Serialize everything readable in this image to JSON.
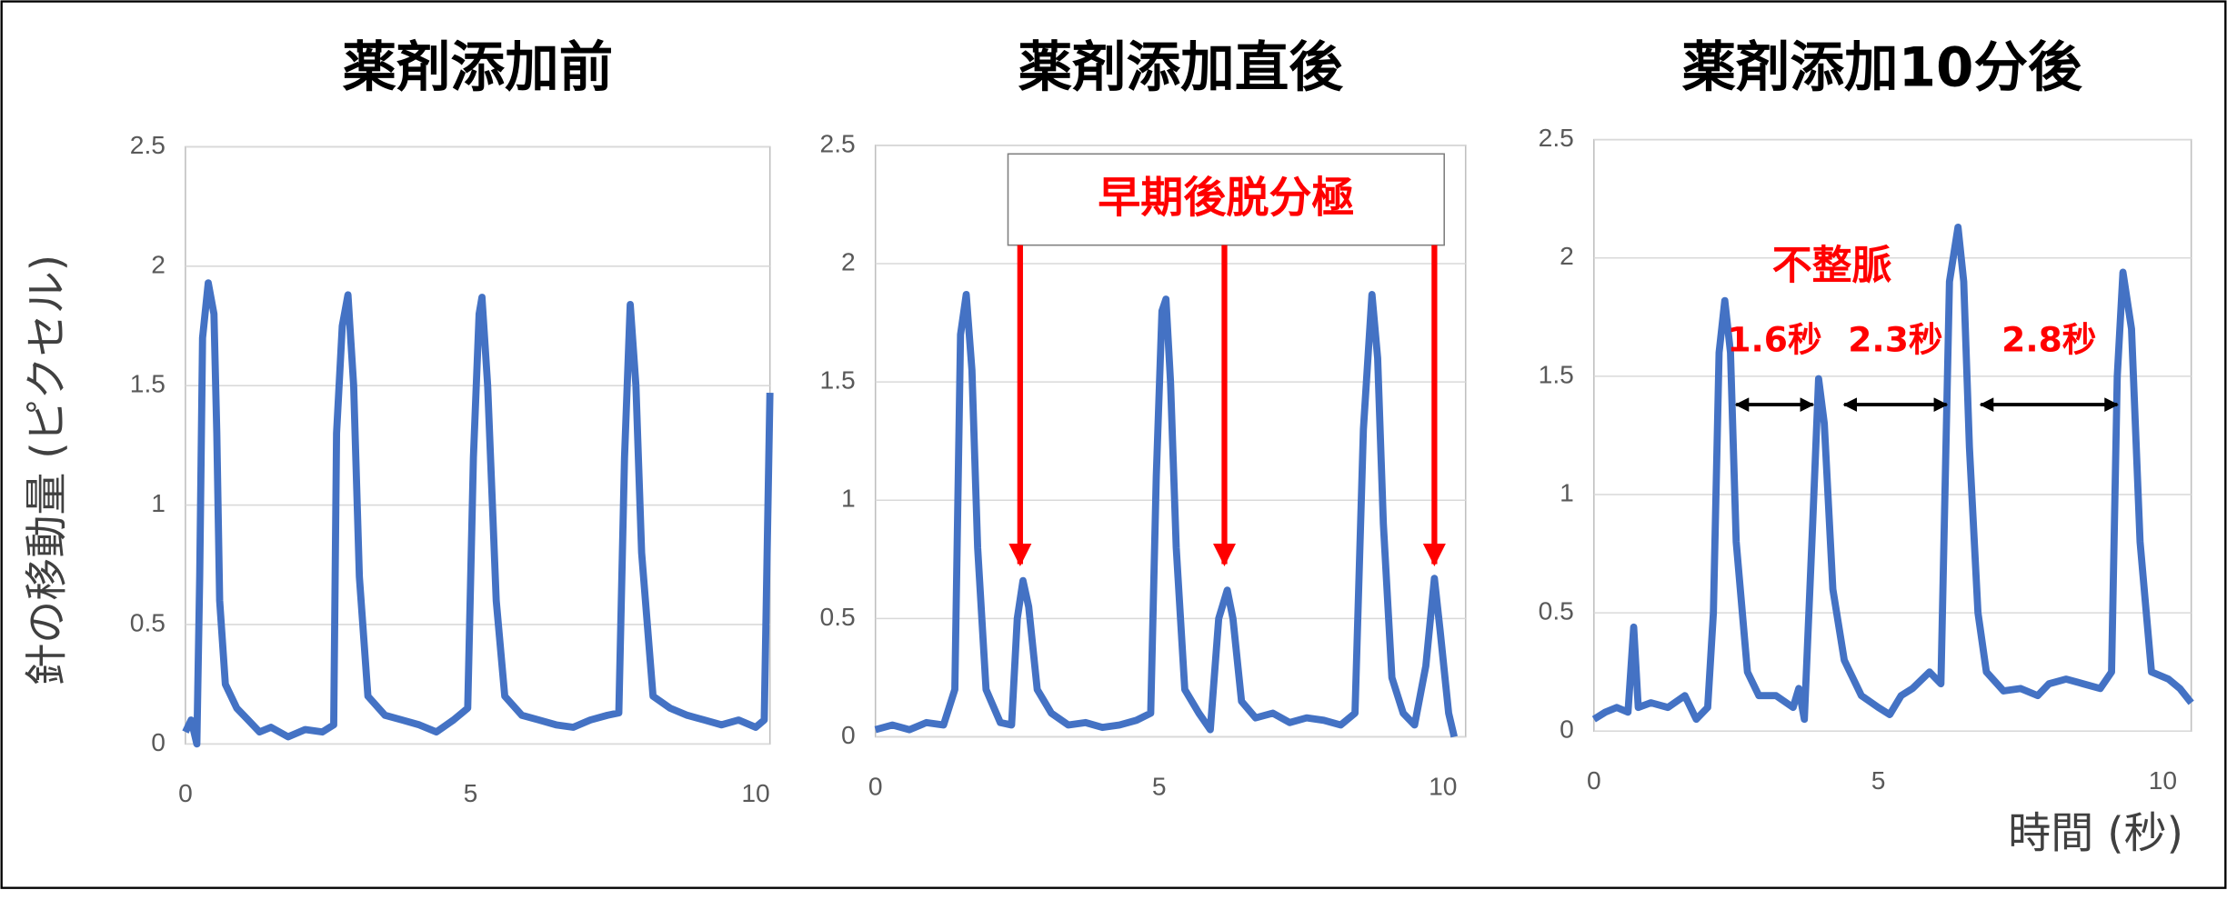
{
  "chart_data": [
    {
      "type": "line",
      "title": "薬剤添加前",
      "ylabel": "針の移動量 (ピクセル)",
      "color": "#4472c4",
      "grid": true,
      "xlim": [
        0,
        10.25
      ],
      "ylim": [
        0,
        2.5
      ],
      "xticks": [
        0,
        5,
        10
      ],
      "yticks": [
        0,
        0.5,
        1,
        1.5,
        2,
        2.5
      ],
      "x": [
        0,
        0.1,
        0.2,
        0.25,
        0.3,
        0.4,
        0.5,
        0.55,
        0.6,
        0.7,
        0.9,
        1.1,
        1.3,
        1.5,
        1.8,
        2.1,
        2.4,
        2.6,
        2.65,
        2.75,
        2.85,
        2.95,
        3.05,
        3.2,
        3.5,
        3.8,
        4.1,
        4.4,
        4.7,
        4.95,
        5.05,
        5.15,
        5.2,
        5.3,
        5.45,
        5.6,
        5.9,
        6.2,
        6.5,
        6.8,
        7.1,
        7.4,
        7.6,
        7.7,
        7.8,
        7.9,
        8.0,
        8.2,
        8.5,
        8.8,
        9.1,
        9.4,
        9.7,
        10.0,
        10.15,
        10.25
      ],
      "values": [
        0.05,
        0.1,
        0.0,
        0.7,
        1.7,
        1.93,
        1.8,
        1.3,
        0.6,
        0.25,
        0.15,
        0.1,
        0.05,
        0.07,
        0.03,
        0.06,
        0.05,
        0.08,
        1.3,
        1.75,
        1.88,
        1.5,
        0.7,
        0.2,
        0.12,
        0.1,
        0.08,
        0.05,
        0.1,
        0.15,
        1.2,
        1.8,
        1.87,
        1.5,
        0.6,
        0.2,
        0.12,
        0.1,
        0.08,
        0.07,
        0.1,
        0.12,
        0.13,
        1.2,
        1.84,
        1.5,
        0.8,
        0.2,
        0.15,
        0.12,
        0.1,
        0.08,
        0.1,
        0.07,
        0.1,
        1.47
      ]
    },
    {
      "type": "line",
      "title": "薬剤添加直後",
      "color": "#4472c4",
      "grid": true,
      "xlim": [
        0,
        10.4
      ],
      "ylim": [
        0,
        2.5
      ],
      "xticks": [
        0,
        5,
        10
      ],
      "yticks": [
        0,
        0.5,
        1,
        1.5,
        2,
        2.5
      ],
      "x": [
        0,
        0.3,
        0.6,
        0.9,
        1.2,
        1.4,
        1.5,
        1.6,
        1.7,
        1.8,
        1.95,
        2.2,
        2.4,
        2.5,
        2.6,
        2.7,
        2.85,
        3.1,
        3.4,
        3.7,
        4.0,
        4.3,
        4.6,
        4.85,
        4.95,
        5.05,
        5.12,
        5.2,
        5.3,
        5.45,
        5.7,
        5.9,
        6.05,
        6.2,
        6.3,
        6.45,
        6.7,
        7.0,
        7.3,
        7.6,
        7.9,
        8.2,
        8.45,
        8.6,
        8.75,
        8.85,
        8.95,
        9.1,
        9.3,
        9.5,
        9.7,
        9.85,
        9.95,
        10.1,
        10.2
      ],
      "values": [
        0.03,
        0.05,
        0.03,
        0.06,
        0.05,
        0.2,
        1.7,
        1.87,
        1.55,
        0.8,
        0.2,
        0.06,
        0.05,
        0.5,
        0.66,
        0.55,
        0.2,
        0.1,
        0.05,
        0.06,
        0.04,
        0.05,
        0.07,
        0.1,
        1.1,
        1.8,
        1.85,
        1.5,
        0.8,
        0.2,
        0.1,
        0.03,
        0.5,
        0.62,
        0.5,
        0.15,
        0.08,
        0.1,
        0.06,
        0.08,
        0.07,
        0.05,
        0.1,
        1.3,
        1.87,
        1.6,
        0.9,
        0.25,
        0.1,
        0.05,
        0.3,
        0.67,
        0.45,
        0.1,
        0.0
      ],
      "annotation": {
        "text": "早期後脱分極",
        "arrows_x": [
          2.55,
          6.15,
          9.85
        ],
        "arrow_y": 0.73
      }
    },
    {
      "type": "line",
      "title": "薬剤添加10分後",
      "xlabel": "時間 (秒)",
      "color": "#4472c4",
      "grid": true,
      "xlim": [
        0,
        10.5
      ],
      "ylim": [
        0,
        2.5
      ],
      "xticks": [
        0,
        5,
        10
      ],
      "yticks": [
        0,
        0.5,
        1,
        1.5,
        2,
        2.5
      ],
      "x": [
        0,
        0.2,
        0.4,
        0.6,
        0.7,
        0.78,
        1.0,
        1.3,
        1.6,
        1.8,
        2.0,
        2.1,
        2.2,
        2.3,
        2.4,
        2.5,
        2.7,
        2.9,
        3.2,
        3.5,
        3.6,
        3.7,
        3.85,
        3.95,
        4.05,
        4.2,
        4.4,
        4.7,
        5.0,
        5.2,
        5.4,
        5.6,
        5.9,
        6.1,
        6.25,
        6.4,
        6.5,
        6.6,
        6.75,
        6.9,
        7.2,
        7.5,
        7.8,
        8.0,
        8.3,
        8.6,
        8.9,
        9.1,
        9.2,
        9.3,
        9.45,
        9.6,
        9.8,
        10.1,
        10.3,
        10.5
      ],
      "values": [
        0.05,
        0.08,
        0.1,
        0.08,
        0.44,
        0.1,
        0.12,
        0.1,
        0.15,
        0.05,
        0.1,
        0.5,
        1.6,
        1.82,
        1.6,
        0.8,
        0.25,
        0.15,
        0.15,
        0.1,
        0.18,
        0.05,
        0.9,
        1.49,
        1.3,
        0.6,
        0.3,
        0.15,
        0.1,
        0.07,
        0.15,
        0.18,
        0.25,
        0.2,
        1.9,
        2.13,
        1.9,
        1.2,
        0.5,
        0.25,
        0.17,
        0.18,
        0.15,
        0.2,
        0.22,
        0.2,
        0.18,
        0.25,
        1.5,
        1.94,
        1.7,
        0.8,
        0.25,
        0.22,
        0.18,
        0.12
      ],
      "note": "不整脈",
      "intervals": [
        {
          "text": "1.6秒",
          "from": 2.5,
          "to": 3.85,
          "y": 1.38
        },
        {
          "text": "2.3秒",
          "from": 4.4,
          "to": 6.2,
          "y": 1.38
        },
        {
          "text": "2.8秒",
          "from": 6.8,
          "to": 9.2,
          "y": 1.38
        }
      ]
    }
  ]
}
